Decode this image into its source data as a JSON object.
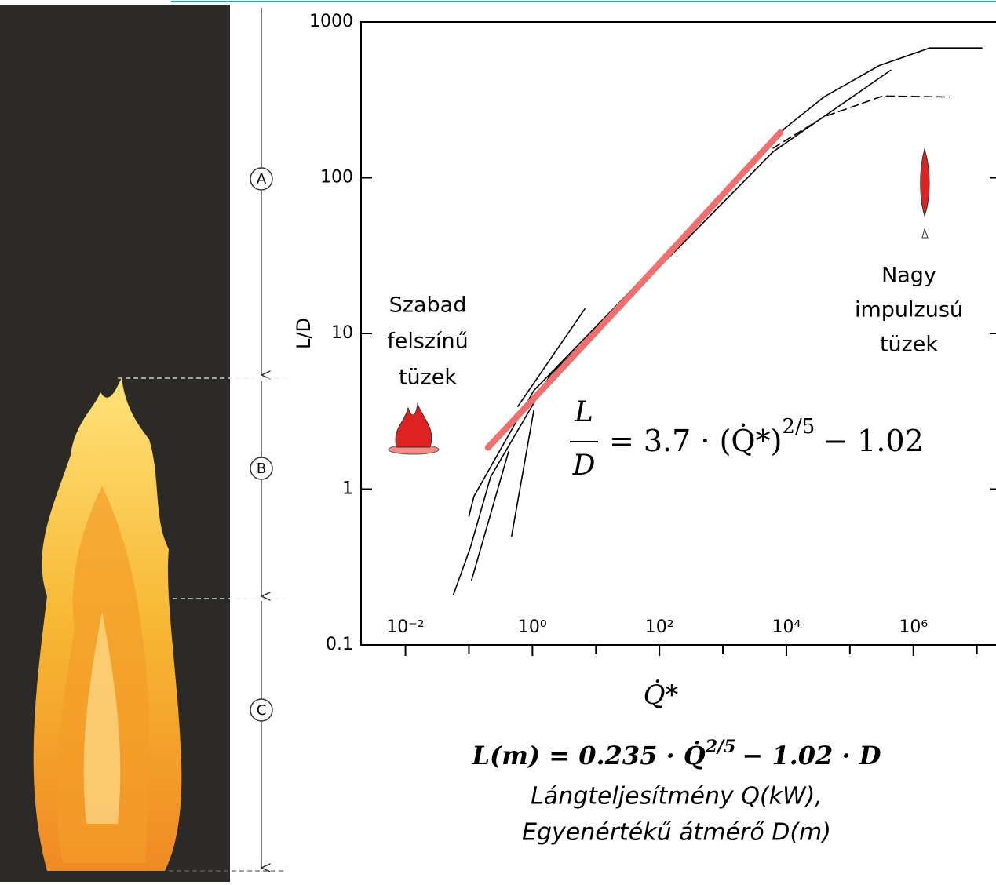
{
  "chart_data": {
    "type": "line",
    "xlabel": "Q̇*",
    "ylabel": "L/D",
    "xscale": "log",
    "yscale": "log",
    "xlim": [
      0.002,
      20000000
    ],
    "ylim": [
      0.1,
      1000
    ],
    "xticks": [
      {
        "value": 0.01,
        "label": "10⁻²"
      },
      {
        "value": 1,
        "label": "10⁰"
      },
      {
        "value": 100,
        "label": "10²"
      },
      {
        "value": 10000,
        "label": "10⁴"
      },
      {
        "value": 1000000,
        "label": "10⁶"
      }
    ],
    "xminorticks": [
      0.1,
      10,
      1000,
      100000,
      10000000
    ],
    "yticks": [
      0.1,
      1,
      10,
      100,
      1000
    ],
    "series": [
      {
        "color": "#000000",
        "dash": false,
        "x": [
          0.1,
          0.12,
          1.05,
          32,
          550,
          9500,
          39000,
          290000,
          1800000,
          12000000
        ],
        "values": [
          0.67,
          0.9,
          4.3,
          18,
          62,
          208,
          330,
          525,
          680,
          680
        ]
      },
      {
        "color": "#000000",
        "dash": true,
        "x": [
          6200,
          39000,
          330000,
          3700000
        ],
        "values": [
          155,
          246,
          335,
          330
        ]
      },
      {
        "color": "#000000",
        "dash": false,
        "x": [
          0.057,
          0.105,
          0.22,
          1.9,
          180,
          6200,
          440000
        ],
        "values": [
          0.21,
          0.42,
          1.2,
          5.4,
          34,
          147,
          490
        ]
      },
      {
        "color": "#000000",
        "dash": false,
        "x": [
          0.11,
          0.42
        ],
        "values": [
          0.26,
          1.74
        ]
      },
      {
        "color": "#000000",
        "dash": false,
        "x": [
          0.47,
          1.05
        ],
        "values": [
          0.5,
          3.2
        ]
      },
      {
        "color": "#000000",
        "dash": false,
        "x": [
          0.59,
          6.7
        ],
        "values": [
          3.4,
          14.4
        ]
      },
      {
        "color": "#f07070",
        "dash": false,
        "width": 8,
        "x": [
          0.2,
          32,
          8000
        ],
        "values": [
          1.85,
          17,
          195
        ]
      }
    ],
    "annotations": {
      "left": [
        "Szabad",
        "felszínű",
        "tüzek"
      ],
      "right": [
        "Nagy",
        "impulzusú",
        "tüzek"
      ]
    },
    "equation": {
      "num": "L",
      "den": "D",
      "rhs": "= 3.7 · (Q̇*)",
      "exp": "2/5",
      "tail": "− 1.02"
    },
    "formula": {
      "main": "L(m) = 0.235 · Q̇",
      "exp": "2/5",
      "tail": "− 1.02 · D",
      "line2": "Lángteljesítmény  Q(kW),",
      "line3": "Egyenértékű átmérő D(m)"
    },
    "zones": [
      "A",
      "B",
      "C"
    ]
  }
}
